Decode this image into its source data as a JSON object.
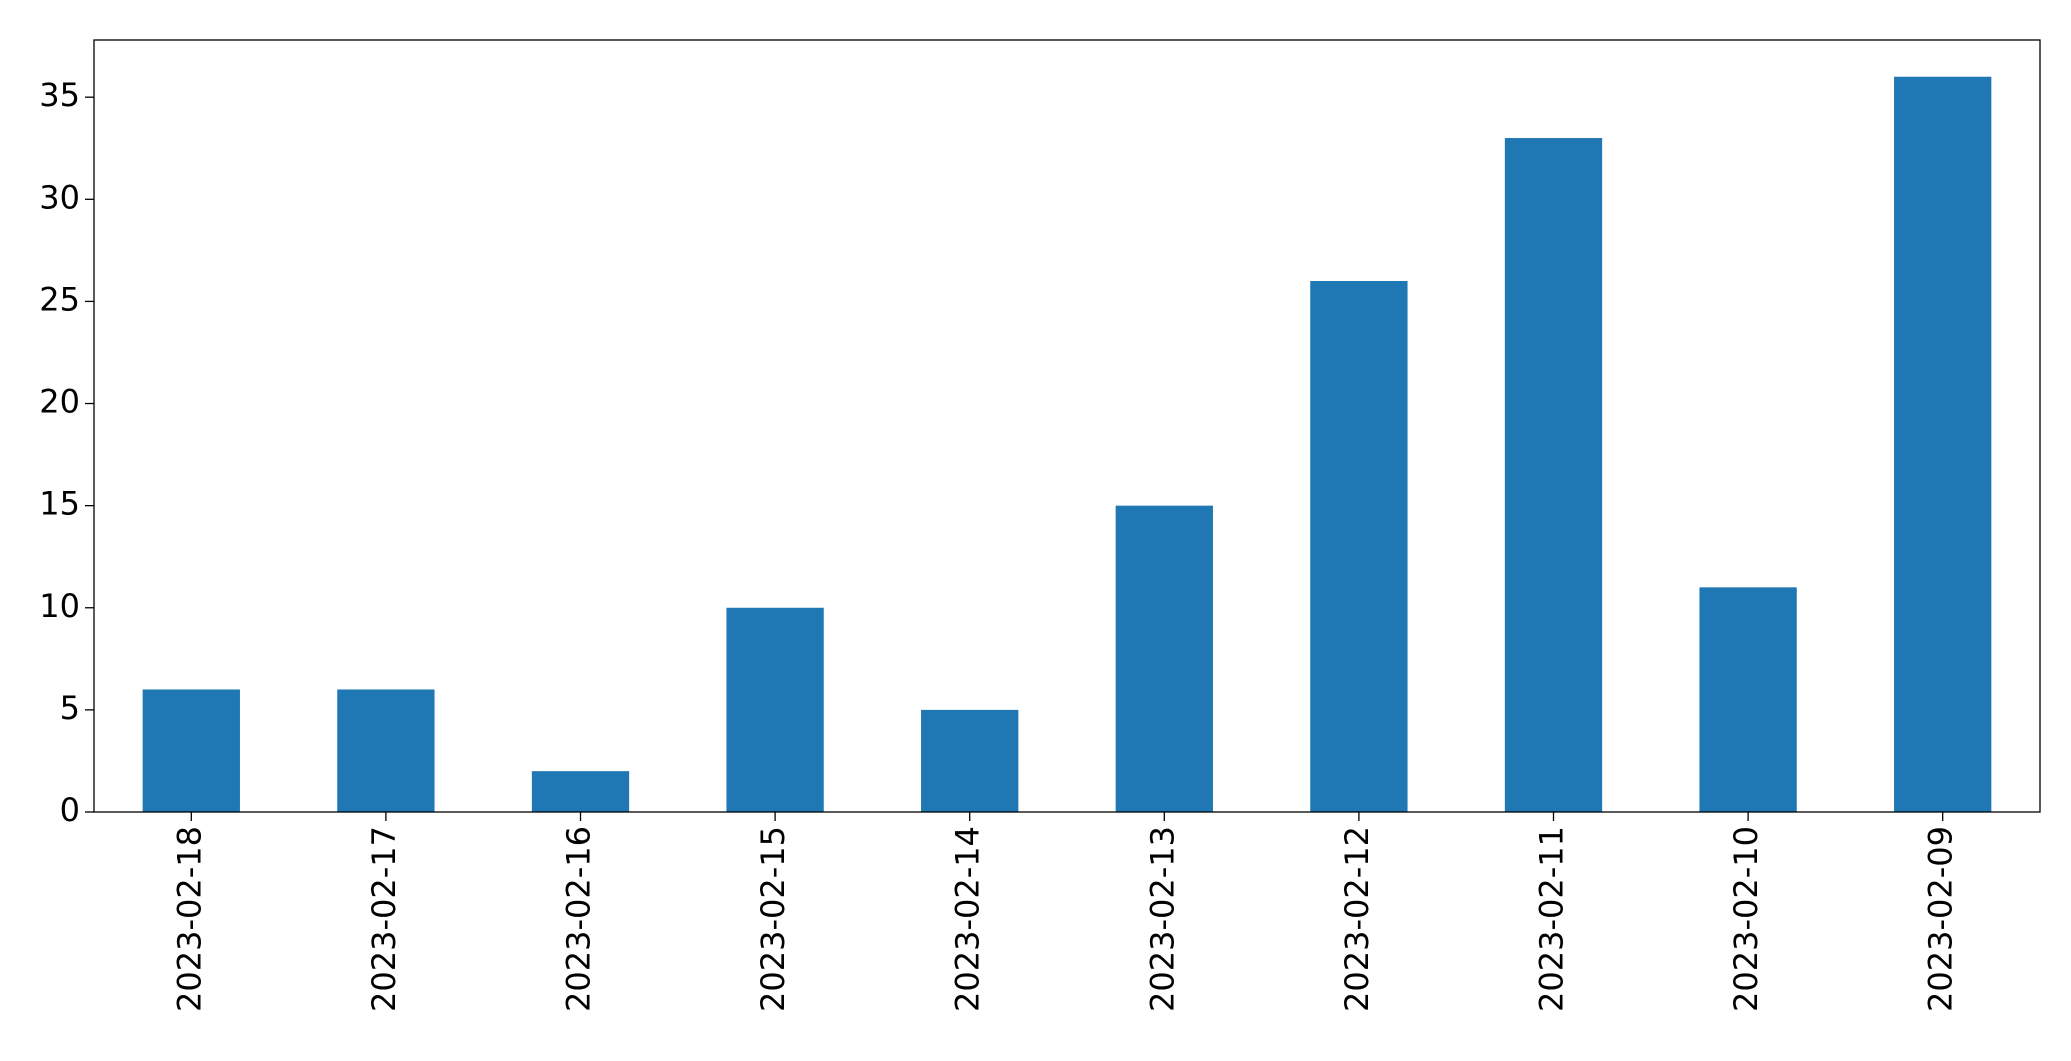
{
  "chart_data": {
    "type": "bar",
    "categories": [
      "2023-02-18",
      "2023-02-17",
      "2023-02-16",
      "2023-02-15",
      "2023-02-14",
      "2023-02-13",
      "2023-02-12",
      "2023-02-11",
      "2023-02-10",
      "2023-02-09"
    ],
    "values": [
      6,
      6,
      2,
      10,
      5,
      15,
      26,
      33,
      11,
      36
    ],
    "color": "#1f77b4",
    "ylim": [
      0,
      37.8
    ],
    "yticks": [
      0,
      5,
      10,
      15,
      20,
      25,
      30,
      35
    ],
    "grid": false
  }
}
